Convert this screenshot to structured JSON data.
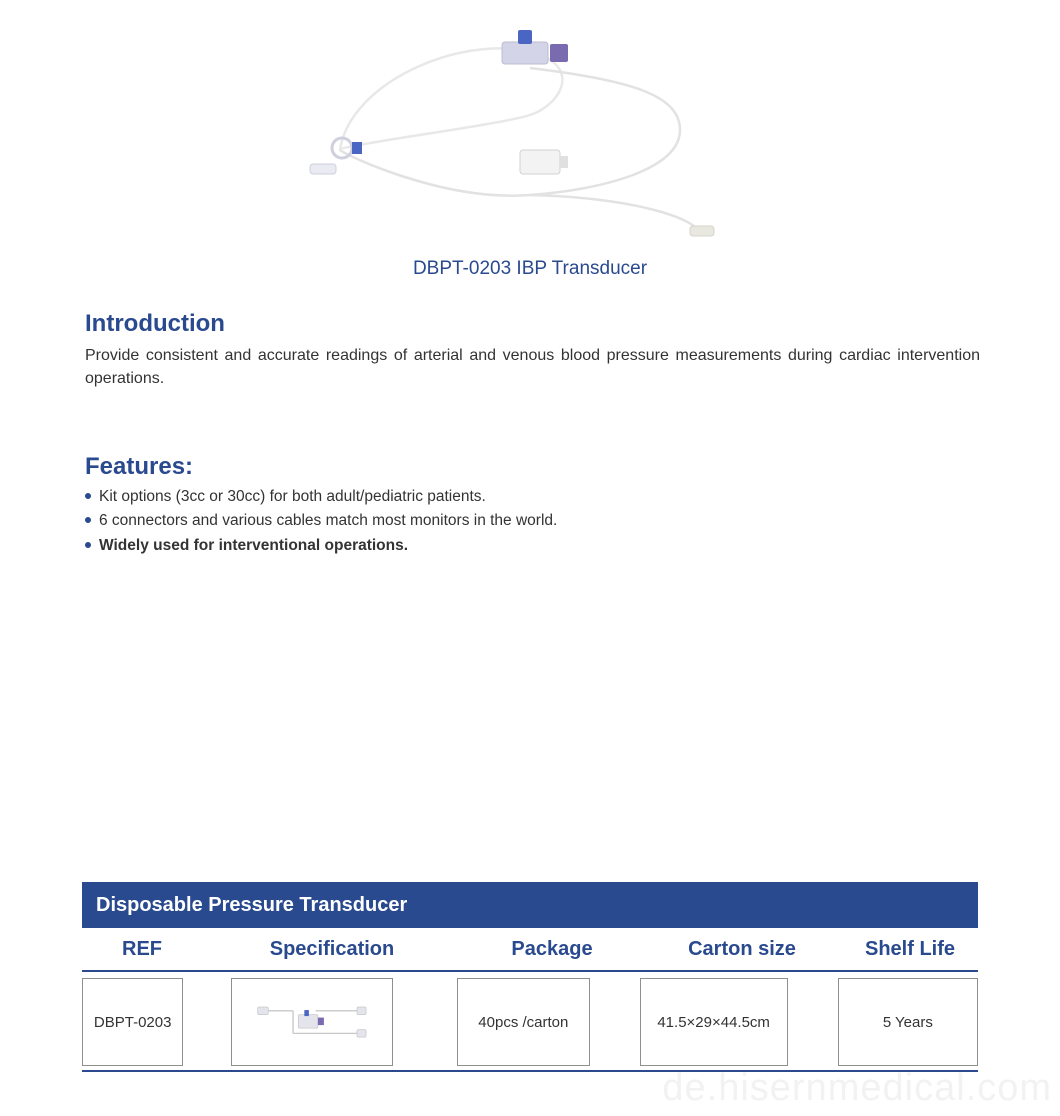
{
  "colors": {
    "brand_blue": "#2a4a8f",
    "text_dark": "#333333",
    "header_bg": "#2a4a8f",
    "header_text": "#ffffff",
    "thin_rule": "#2a4a8f",
    "cell_border": "#8f8f8f",
    "bullet": "#2a4a8f",
    "watermark": "#dcdcdc",
    "tube_line": "#dedede",
    "connector_blue": "#4a66c2",
    "connector_purple": "#7a6bb0",
    "connector_clear": "#d4d4e8"
  },
  "product": {
    "title": "DBPT-0203 IBP Transducer"
  },
  "intro": {
    "heading": "Introduction",
    "body": "Provide consistent and accurate readings of arterial and venous blood pressure measurements during cardiac intervention operations."
  },
  "features": {
    "heading": "Features:",
    "items": [
      {
        "text": "Kit options (3cc or 30cc) for both adult/pediatric patients.",
        "bold": false
      },
      {
        "text": "6 connectors and various cables match most monitors in the world.",
        "bold": false
      },
      {
        "text": "Widely used for interventional operations.",
        "bold": true
      }
    ]
  },
  "table": {
    "title": "Disposable Pressure Transducer",
    "columns": [
      "REF",
      "Specification",
      "Package",
      "Carton  size",
      "Shelf Life"
    ],
    "row": {
      "ref": "DBPT-0203",
      "package": "40pcs /carton",
      "carton_size": "41.5×29×44.5cm",
      "shelf_life": "5 Years"
    }
  },
  "watermark": "de.hisernmedical.com"
}
